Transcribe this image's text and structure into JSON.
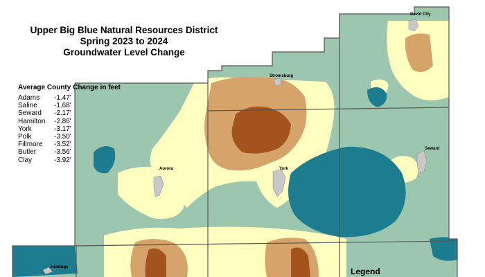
{
  "title": {
    "line1": "Upper Big Blue Natural Resources District",
    "line2": "Spring 2023 to 2024",
    "line3": "Groundwater Level Change"
  },
  "county_table": {
    "heading": "Average County Change in feet",
    "rows": [
      {
        "county": "Adams",
        "change": "-1.47'"
      },
      {
        "county": "Saline",
        "change": "-1.68'"
      },
      {
        "county": "Seward",
        "change": "-2.17'"
      },
      {
        "county": "Hamilton",
        "change": "-2.86'"
      },
      {
        "county": "York",
        "change": "-3.17'"
      },
      {
        "county": "Polk",
        "change": "-3.50'"
      },
      {
        "county": "Fillmore",
        "change": "-3.52'"
      },
      {
        "county": "Butler",
        "change": "-3.56'"
      },
      {
        "county": "Clay",
        "change": "-3.92'"
      }
    ]
  },
  "places": {
    "david_city": "David City",
    "stromsburg": "Stromsburg",
    "seward": "Seward",
    "aurora": "Aurora",
    "york": "York",
    "hastings": "Hastings"
  },
  "legend": {
    "title": "Legend"
  },
  "colors": {
    "background": "#ffffff",
    "light_green": "#9cc6ae",
    "pale_yellow": "#ffffc0",
    "tan": "#d6a46a",
    "dark_brown": "#a4531c",
    "teal": "#1b7d8f",
    "town_gray": "#c8c8c8",
    "county_line": "#555555"
  }
}
